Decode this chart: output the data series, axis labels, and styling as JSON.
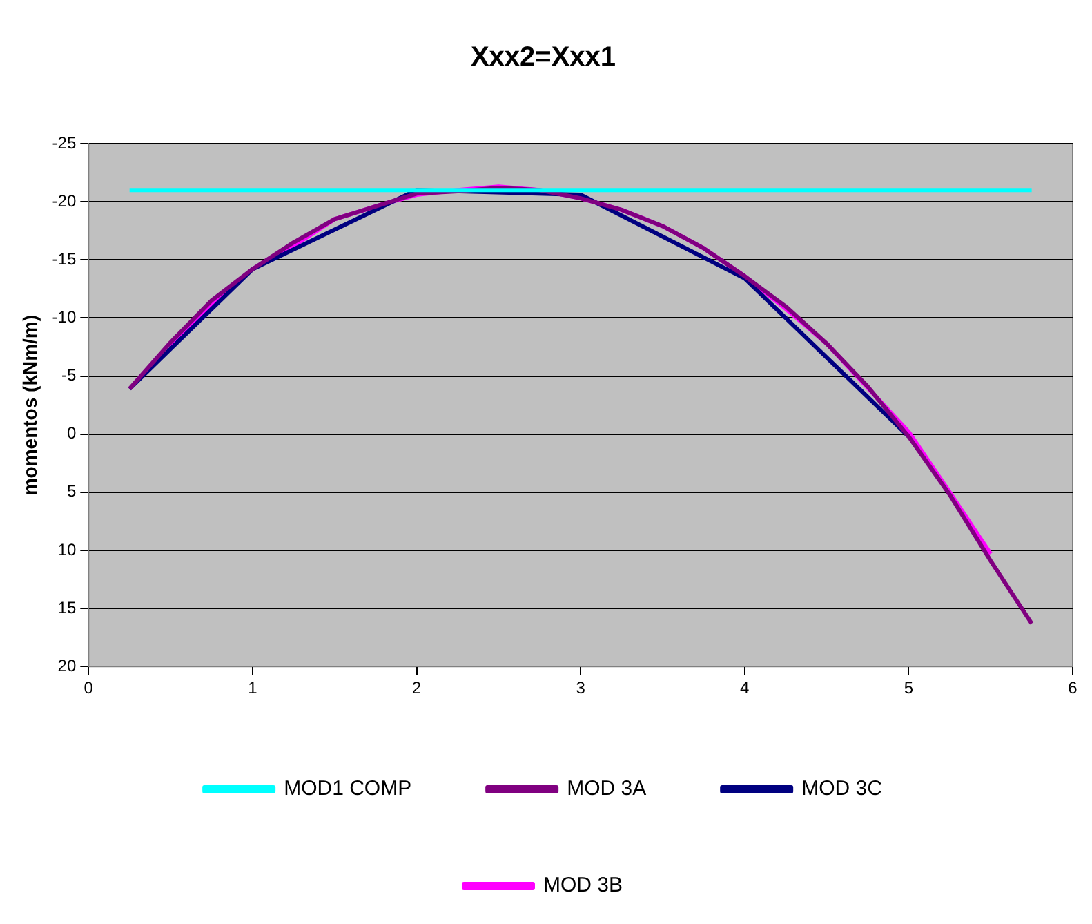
{
  "chart_data": {
    "type": "line",
    "title": "Xxx2=Xxx1",
    "ylabel": "momentos (kNm/m)",
    "xlim": [
      0,
      6
    ],
    "xticks": [
      0,
      1,
      2,
      3,
      4,
      5,
      6
    ],
    "ylim": [
      20,
      -25
    ],
    "yticks": [
      -25,
      -20,
      -15,
      -10,
      -5,
      0,
      5,
      10,
      15,
      20
    ],
    "grid": "y",
    "legend": "bottom",
    "marker": "none",
    "line_style": "solid",
    "series": [
      {
        "name": "MOD1 COMP",
        "color": "#00ffff",
        "x": [
          0.25,
          5.75
        ],
        "values": [
          -21,
          -21
        ]
      },
      {
        "name": "MOD 3A",
        "color": "#800080",
        "x": [
          0.25,
          0.5,
          0.75,
          1,
          1.25,
          1.5,
          1.75,
          2,
          2.25,
          2.5,
          2.75,
          3,
          3.25,
          3.5,
          3.75,
          4,
          4.25,
          4.5,
          4.75,
          5,
          5.25,
          5.5,
          5.75
        ],
        "values": [
          -3.9,
          -7.9,
          -11.5,
          -14.2,
          -16.5,
          -18.5,
          -19.6,
          -20.7,
          -20.9,
          -21.2,
          -21.0,
          -20.3,
          -19.3,
          -17.9,
          -16.0,
          -13.6,
          -11.0,
          -7.8,
          -4.1,
          0.2,
          5.2,
          10.9,
          16.3
        ]
      },
      {
        "name": "MOD 3C",
        "color": "#000080",
        "x": [
          0.25,
          1,
          2,
          3,
          4,
          5
        ],
        "values": [
          -3.9,
          -14.2,
          -21.0,
          -20.6,
          -13.4,
          0.2
        ]
      },
      {
        "name": "MOD 3B",
        "color": "#ff00ff",
        "x": [
          0.5,
          0.75,
          1,
          1.25,
          1.5,
          1.75,
          2,
          2.25,
          2.5,
          2.75,
          3,
          3.25,
          3.5,
          3.75,
          4,
          4.25,
          4.5,
          4.75,
          5,
          5.25,
          5.5
        ],
        "values": [
          -7.6,
          -11.2,
          -14.2,
          -16.2,
          -18.5,
          -19.6,
          -20.6,
          -21.0,
          -21.3,
          -21.0,
          -20.3,
          -19.3,
          -17.9,
          -16.0,
          -13.6,
          -10.8,
          -7.8,
          -4.0,
          -0.2,
          5.0,
          10.3
        ]
      }
    ]
  }
}
